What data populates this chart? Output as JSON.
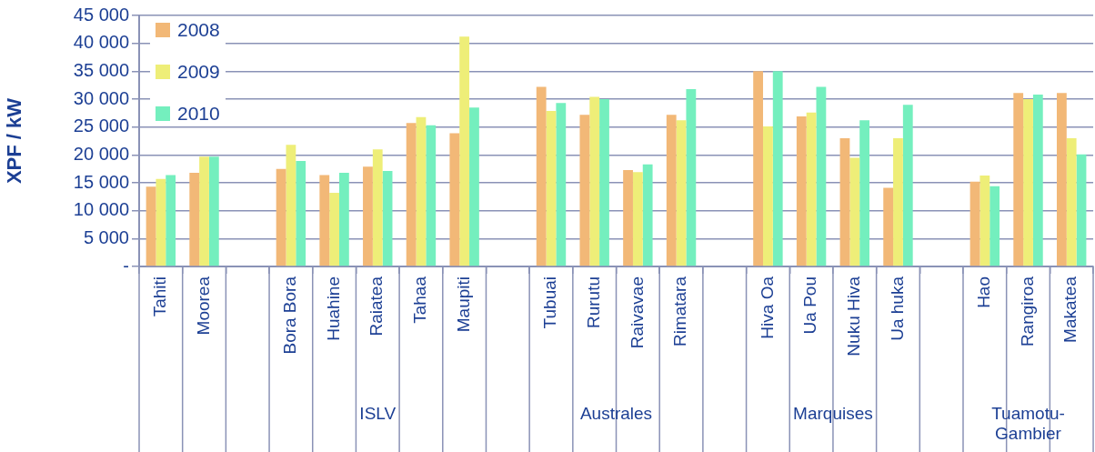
{
  "chart_data": {
    "type": "bar",
    "ylabel": "XPF / kW",
    "categories": [
      "Tahiti",
      "Moorea",
      null,
      "Bora Bora",
      "Huahine",
      "Raiatea",
      "Tahaa",
      "Maupiti",
      null,
      "Tubuai",
      "Rurutu",
      "Raivavae",
      "Rimatara",
      null,
      "Hiva Oa",
      "Ua Pou",
      "Nuku Hiva",
      "Ua huka",
      null,
      "Hao",
      "Rangiroa",
      "Makatea"
    ],
    "series": [
      {
        "name": "2008",
        "color": "#f2b877",
        "values": [
          14300,
          16800,
          null,
          17500,
          16400,
          17900,
          25700,
          23900,
          null,
          32200,
          27200,
          17300,
          27200,
          null,
          35000,
          26900,
          23000,
          14100,
          null,
          15200,
          31100,
          31100
        ]
      },
      {
        "name": "2009",
        "color": "#eeee78",
        "values": [
          15700,
          19700,
          null,
          21800,
          13200,
          21000,
          26800,
          41200,
          null,
          27900,
          30400,
          16900,
          26200,
          null,
          25100,
          27600,
          19500,
          23000,
          null,
          16300,
          30000,
          23000
        ]
      },
      {
        "name": "2010",
        "color": "#74efbe",
        "values": [
          16400,
          19700,
          null,
          18900,
          16800,
          17100,
          25300,
          28500,
          null,
          29300,
          30000,
          18300,
          31800,
          null,
          35000,
          32200,
          26200,
          29000,
          null,
          14400,
          30800,
          20100
        ]
      }
    ],
    "ylim": [
      0,
      45000
    ],
    "yticks": [
      {
        "value": 0,
        "label": "-"
      },
      {
        "value": 5000,
        "label": "5 000"
      },
      {
        "value": 10000,
        "label": "10 000"
      },
      {
        "value": 15000,
        "label": "15 000"
      },
      {
        "value": 20000,
        "label": "20 000"
      },
      {
        "value": 25000,
        "label": "25 000"
      },
      {
        "value": 30000,
        "label": "30 000"
      },
      {
        "value": 35000,
        "label": "35 000"
      },
      {
        "value": 40000,
        "label": "40 000"
      },
      {
        "value": 45000,
        "label": "45 000"
      }
    ],
    "grid": "y",
    "legend": "top left",
    "annotations": [
      "ISLV",
      "Australes",
      "Marquises",
      "Tuamotu-Gambier"
    ]
  }
}
